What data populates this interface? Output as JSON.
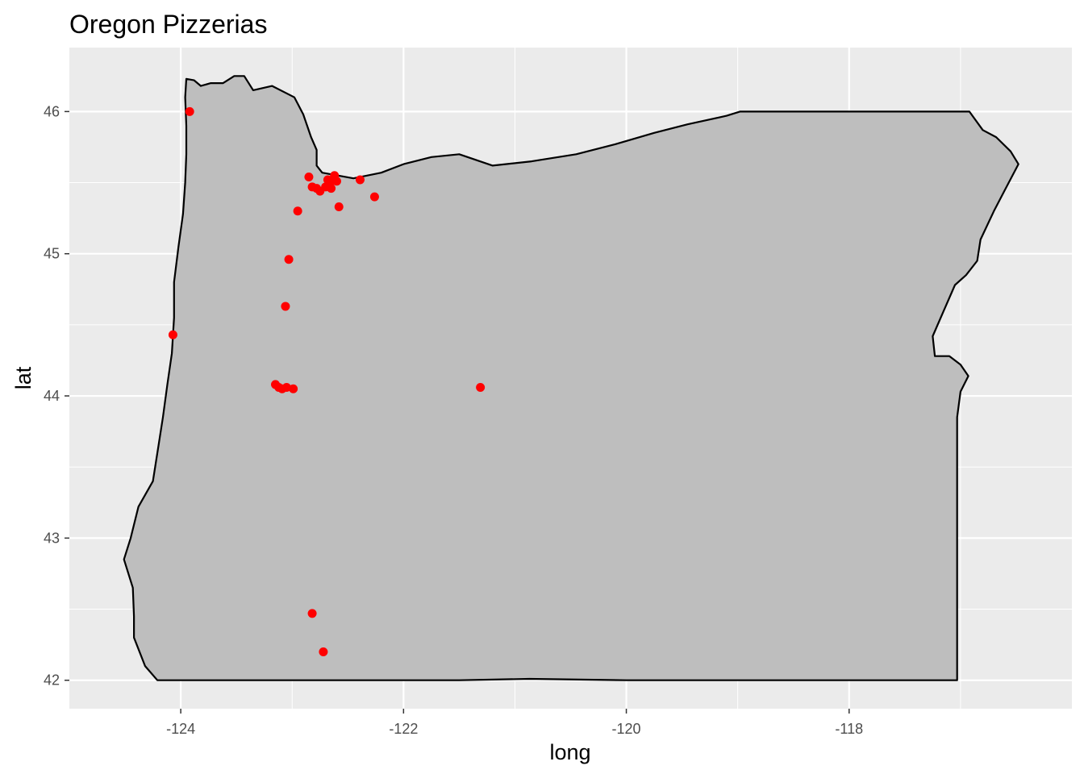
{
  "chart_data": {
    "type": "scatter",
    "title": "Oregon Pizzerias",
    "xlabel": "long",
    "ylabel": "lat",
    "xlim": [
      -125.0,
      -116.0
    ],
    "ylim": [
      41.8,
      46.45
    ],
    "x_ticks": [
      -124,
      -122,
      -120,
      -118
    ],
    "x_tick_labels": [
      "-124",
      "-122",
      "-120",
      "-118"
    ],
    "y_ticks": [
      42,
      43,
      44,
      45,
      46
    ],
    "y_tick_labels": [
      "42",
      "43",
      "44",
      "45",
      "46"
    ],
    "grid": true,
    "legend": "none",
    "colors": {
      "panel_background": "#ebebeb",
      "grid": "#ffffff",
      "state_fill": "#bebebe",
      "state_outline": "#000000",
      "points": "#ff0000"
    },
    "state_outline": [
      [
        -123.95,
        46.23
      ],
      [
        -123.88,
        46.22
      ],
      [
        -123.82,
        46.18
      ],
      [
        -123.73,
        46.2
      ],
      [
        -123.62,
        46.2
      ],
      [
        -123.52,
        46.25
      ],
      [
        -123.43,
        46.25
      ],
      [
        -123.35,
        46.15
      ],
      [
        -123.18,
        46.18
      ],
      [
        -122.98,
        46.1
      ],
      [
        -122.9,
        45.98
      ],
      [
        -122.83,
        45.82
      ],
      [
        -122.78,
        45.73
      ],
      [
        -122.78,
        45.62
      ],
      [
        -122.73,
        45.57
      ],
      [
        -122.45,
        45.53
      ],
      [
        -122.2,
        45.57
      ],
      [
        -122.0,
        45.63
      ],
      [
        -121.75,
        45.68
      ],
      [
        -121.5,
        45.7
      ],
      [
        -121.2,
        45.62
      ],
      [
        -120.85,
        45.65
      ],
      [
        -120.45,
        45.7
      ],
      [
        -120.1,
        45.77
      ],
      [
        -119.75,
        45.85
      ],
      [
        -119.45,
        45.91
      ],
      [
        -119.1,
        45.97
      ],
      [
        -118.98,
        46.0
      ],
      [
        -118.5,
        46.0
      ],
      [
        -117.98,
        46.0
      ],
      [
        -117.5,
        46.0
      ],
      [
        -116.92,
        46.0
      ],
      [
        -116.8,
        45.87
      ],
      [
        -116.68,
        45.82
      ],
      [
        -116.55,
        45.72
      ],
      [
        -116.48,
        45.63
      ],
      [
        -116.6,
        45.45
      ],
      [
        -116.7,
        45.3
      ],
      [
        -116.82,
        45.1
      ],
      [
        -116.85,
        44.95
      ],
      [
        -116.95,
        44.85
      ],
      [
        -117.05,
        44.78
      ],
      [
        -117.15,
        44.6
      ],
      [
        -117.25,
        44.42
      ],
      [
        -117.23,
        44.28
      ],
      [
        -117.1,
        44.28
      ],
      [
        -117.0,
        44.22
      ],
      [
        -116.93,
        44.14
      ],
      [
        -117.0,
        44.03
      ],
      [
        -117.03,
        43.85
      ],
      [
        -117.03,
        43.6
      ],
      [
        -117.03,
        43.2
      ],
      [
        -117.03,
        42.6
      ],
      [
        -117.03,
        42.0
      ],
      [
        -118.0,
        42.0
      ],
      [
        -119.0,
        42.0
      ],
      [
        -120.0,
        42.0
      ],
      [
        -120.87,
        42.01
      ],
      [
        -121.5,
        42.0
      ],
      [
        -122.5,
        42.0
      ],
      [
        -123.5,
        42.0
      ],
      [
        -124.21,
        42.0
      ],
      [
        -124.32,
        42.1
      ],
      [
        -124.42,
        42.3
      ],
      [
        -124.42,
        42.45
      ],
      [
        -124.43,
        42.65
      ],
      [
        -124.51,
        42.85
      ],
      [
        -124.45,
        43.0
      ],
      [
        -124.38,
        43.22
      ],
      [
        -124.25,
        43.4
      ],
      [
        -124.2,
        43.65
      ],
      [
        -124.16,
        43.85
      ],
      [
        -124.12,
        44.08
      ],
      [
        -124.08,
        44.3
      ],
      [
        -124.06,
        44.55
      ],
      [
        -124.06,
        44.8
      ],
      [
        -124.02,
        45.05
      ],
      [
        -123.98,
        45.28
      ],
      [
        -123.96,
        45.5
      ],
      [
        -123.95,
        45.7
      ],
      [
        -123.95,
        45.9
      ],
      [
        -123.96,
        46.1
      ],
      [
        -123.95,
        46.23
      ]
    ],
    "points": [
      {
        "x": -123.92,
        "y": 46.0
      },
      {
        "x": -124.07,
        "y": 44.43
      },
      {
        "x": -122.85,
        "y": 45.54
      },
      {
        "x": -122.82,
        "y": 45.47
      },
      {
        "x": -122.78,
        "y": 45.46
      },
      {
        "x": -122.75,
        "y": 45.44
      },
      {
        "x": -122.7,
        "y": 45.47
      },
      {
        "x": -122.68,
        "y": 45.52
      },
      {
        "x": -122.66,
        "y": 45.5
      },
      {
        "x": -122.65,
        "y": 45.46
      },
      {
        "x": -122.62,
        "y": 45.55
      },
      {
        "x": -122.6,
        "y": 45.51
      },
      {
        "x": -122.58,
        "y": 45.33
      },
      {
        "x": -122.39,
        "y": 45.52
      },
      {
        "x": -122.26,
        "y": 45.4
      },
      {
        "x": -122.95,
        "y": 45.3
      },
      {
        "x": -123.03,
        "y": 44.96
      },
      {
        "x": -123.06,
        "y": 44.63
      },
      {
        "x": -123.15,
        "y": 44.08
      },
      {
        "x": -123.12,
        "y": 44.06
      },
      {
        "x": -123.09,
        "y": 44.05
      },
      {
        "x": -123.05,
        "y": 44.06
      },
      {
        "x": -122.99,
        "y": 44.05
      },
      {
        "x": -121.31,
        "y": 44.06
      },
      {
        "x": -122.82,
        "y": 42.47
      },
      {
        "x": -122.72,
        "y": 42.2
      }
    ]
  }
}
